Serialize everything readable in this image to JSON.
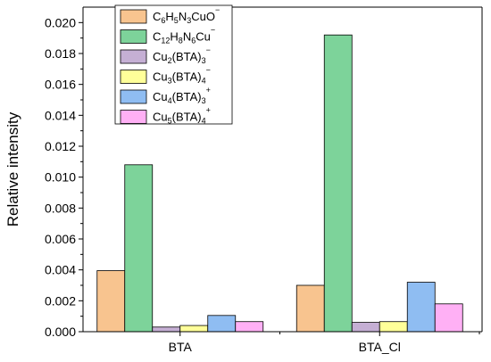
{
  "chart_data": {
    "type": "bar",
    "categories": [
      "BTA",
      "BTA_Cl"
    ],
    "ylabel": "Relative intensity",
    "xlabel": "",
    "ylim": [
      0,
      0.021
    ],
    "yticks": [
      "0.000",
      "0.002",
      "0.004",
      "0.006",
      "0.008",
      "0.010",
      "0.012",
      "0.014",
      "0.016",
      "0.018",
      "0.020"
    ],
    "grid": false,
    "legend_position": "top-left",
    "series": [
      {
        "name": "C6H5N3CuO−",
        "name_parts": [
          [
            "C",
            ""
          ],
          [
            "6",
            "sub"
          ],
          [
            "H",
            ""
          ],
          [
            "5",
            "sub"
          ],
          [
            "N",
            ""
          ],
          [
            "3",
            "sub"
          ],
          [
            "CuO",
            ""
          ],
          [
            "−",
            "sup"
          ]
        ],
        "color": "#f8c48f",
        "values": [
          0.00395,
          0.003
        ]
      },
      {
        "name": "C12H8N6Cu−",
        "name_parts": [
          [
            "C",
            ""
          ],
          [
            "12",
            "sub"
          ],
          [
            "H",
            ""
          ],
          [
            "8",
            "sub"
          ],
          [
            "N",
            ""
          ],
          [
            "6",
            "sub"
          ],
          [
            "Cu",
            ""
          ],
          [
            "−",
            "sup"
          ]
        ],
        "color": "#7dd39a",
        "values": [
          0.0108,
          0.0192
        ]
      },
      {
        "name": "Cu2(BTA)3−",
        "name_parts": [
          [
            "Cu",
            ""
          ],
          [
            "2",
            "sub"
          ],
          [
            "(BTA)",
            ""
          ],
          [
            "3",
            "sub"
          ],
          [
            "−",
            "sup"
          ]
        ],
        "color": "#c5afd4",
        "values": [
          0.0003,
          0.0006
        ]
      },
      {
        "name": "Cu3(BTA)4−",
        "name_parts": [
          [
            "Cu",
            ""
          ],
          [
            "3",
            "sub"
          ],
          [
            "(BTA)",
            ""
          ],
          [
            "4",
            "sub"
          ],
          [
            "−",
            "sup"
          ]
        ],
        "color": "#ffff99",
        "values": [
          0.0004,
          0.00065
        ]
      },
      {
        "name": "Cu4(BTA)3+",
        "name_parts": [
          [
            "Cu",
            ""
          ],
          [
            "4",
            "sub"
          ],
          [
            "(BTA)",
            ""
          ],
          [
            "3",
            "sub"
          ],
          [
            "+",
            "sup"
          ]
        ],
        "color": "#8fbdf2",
        "values": [
          0.00105,
          0.0032
        ]
      },
      {
        "name": "Cu5(BTA)4+",
        "name_parts": [
          [
            "Cu",
            ""
          ],
          [
            "5",
            "sub"
          ],
          [
            "(BTA)",
            ""
          ],
          [
            "4",
            "sub"
          ],
          [
            "+",
            "sup"
          ]
        ],
        "color": "#ffb0f5",
        "values": [
          0.00065,
          0.0018
        ]
      }
    ]
  }
}
